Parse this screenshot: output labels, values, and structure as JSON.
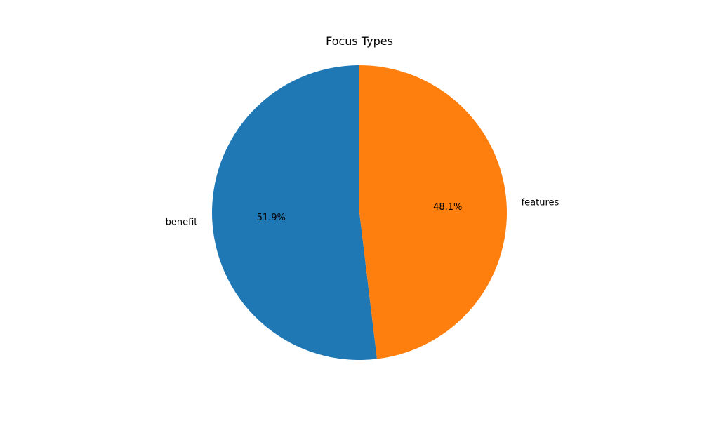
{
  "chart_data": {
    "type": "pie",
    "title": "Focus Types",
    "categories": [
      "benefit",
      "features"
    ],
    "values": [
      51.9,
      48.1
    ],
    "percent_labels": [
      "51.9%",
      "48.1%"
    ],
    "colors": [
      "#1f77b4",
      "#ff7f0e"
    ],
    "start_angle_deg": 90,
    "direction": "counterclockwise",
    "legend": "none"
  }
}
